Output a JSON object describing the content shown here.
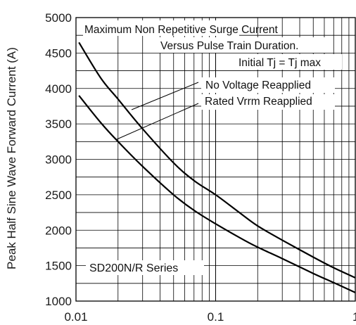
{
  "chart_data": {
    "type": "line",
    "ylabel": "Peak Half Sine Wave Forward Current (A)",
    "xlabel": "",
    "x_scale": "log",
    "xlim": [
      0.01,
      1
    ],
    "ylim": [
      1000,
      5000
    ],
    "x_tick_labels": [
      "0.01",
      "0.1",
      "1"
    ],
    "y_tick_labels": [
      "1000",
      "1500",
      "2000",
      "2500",
      "3000",
      "3500",
      "4000",
      "4500",
      "5000"
    ],
    "y_ticks": [
      1000,
      1500,
      2000,
      2500,
      3000,
      3500,
      4000,
      4500,
      5000
    ],
    "grid": true,
    "annotations": {
      "title_line1": "Maximum Non Repetitive Surge Current",
      "title_line2": "Versus Pulse Train Duration.",
      "condition": "Initial Tj = Tj max",
      "series_label": "SD200N/R Series"
    },
    "series": [
      {
        "name": "No Voltage Reapplied",
        "x": [
          0.0105,
          0.015,
          0.02,
          0.03,
          0.05,
          0.07,
          0.1,
          0.15,
          0.2,
          0.3,
          0.5,
          0.7,
          1.0
        ],
        "values": [
          4650,
          4150,
          3850,
          3430,
          2950,
          2700,
          2500,
          2240,
          2060,
          1860,
          1620,
          1470,
          1330
        ]
      },
      {
        "name": "Rated Vrrm Reapplied",
        "x": [
          0.0105,
          0.015,
          0.02,
          0.03,
          0.05,
          0.07,
          0.1,
          0.15,
          0.2,
          0.3,
          0.5,
          0.7,
          1.0
        ],
        "values": [
          3900,
          3520,
          3250,
          2900,
          2500,
          2280,
          2090,
          1890,
          1760,
          1600,
          1390,
          1260,
          1120
        ]
      }
    ]
  }
}
